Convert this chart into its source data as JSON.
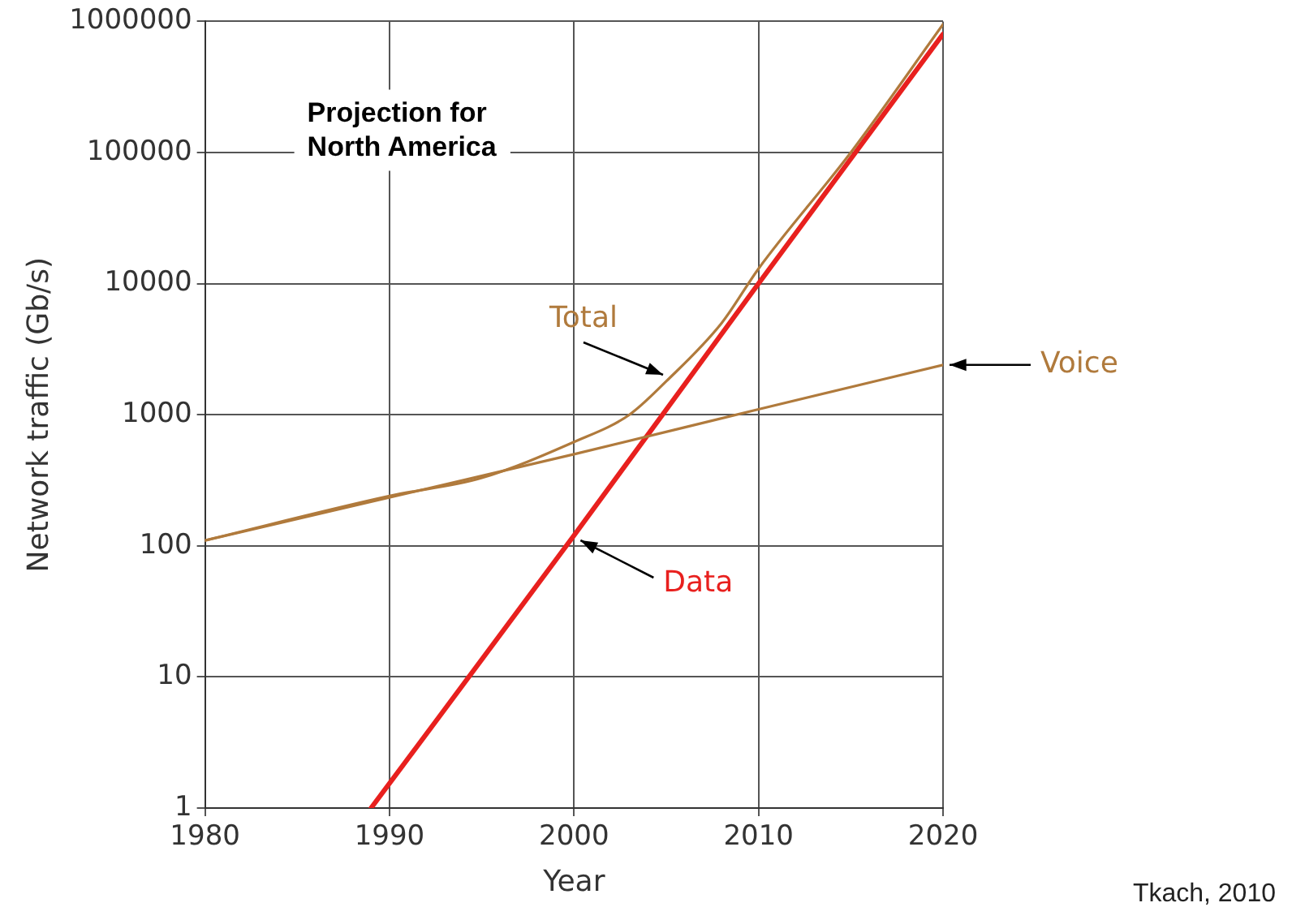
{
  "chart_data": {
    "type": "line",
    "xlabel": "Year",
    "ylabel": "Network traffic (Gb/s)",
    "annotations": [
      "Projection for North America",
      "Tkach, 2010"
    ],
    "xlim": [
      1980,
      2020
    ],
    "xticks": [
      1980,
      1990,
      2000,
      2010,
      2020
    ],
    "ylim": [
      1,
      1000000
    ],
    "yticks": [
      1,
      10,
      100,
      1000,
      10000,
      100000,
      1000000
    ],
    "log": "y",
    "grid": true,
    "legend": false,
    "marker": "none",
    "line_style": "solid",
    "series": [
      {
        "name": "Total",
        "color": "#b07a3c",
        "x": [
          1980,
          1990,
          1995,
          2000,
          2003,
          2005,
          2008,
          2010,
          2015,
          2020
        ],
        "values": [
          110,
          240,
          330,
          620,
          1000,
          1800,
          5000,
          13000,
          100000,
          950000
        ]
      },
      {
        "name": "Voice",
        "color": "#b07a3c",
        "x": [
          1980,
          2000,
          2010,
          2020
        ],
        "values": [
          110,
          500,
          1100,
          2400
        ]
      },
      {
        "name": "Data",
        "color": "#e8201e",
        "x": [
          1989,
          2000,
          2010,
          2020
        ],
        "values": [
          1,
          120,
          10000,
          800000
        ]
      }
    ]
  }
}
